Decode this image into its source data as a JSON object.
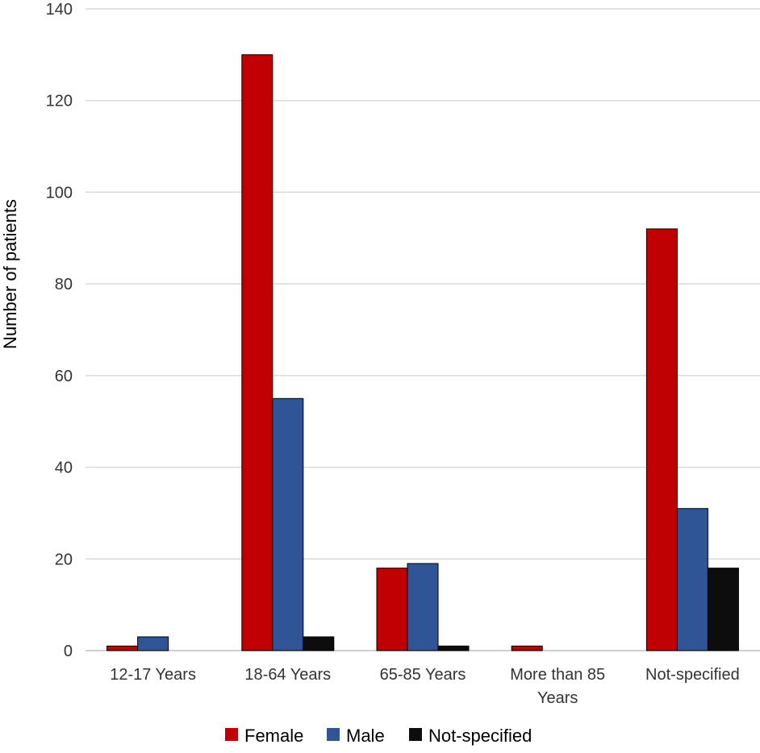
{
  "chart_data": {
    "type": "bar",
    "title": "",
    "xlabel": "",
    "ylabel": "Number of patients",
    "ylim": [
      0,
      140
    ],
    "yticks": [
      0,
      20,
      40,
      60,
      80,
      100,
      120,
      140
    ],
    "grid": true,
    "legend_position": "bottom",
    "categories": [
      [
        "12-17 Years"
      ],
      [
        "18-64 Years"
      ],
      [
        "65-85 Years"
      ],
      [
        "More than 85",
        "Years"
      ],
      [
        "Not-specified"
      ]
    ],
    "series": [
      {
        "name": "Female",
        "color": "#c00000",
        "values": [
          1,
          130,
          18,
          1,
          92
        ]
      },
      {
        "name": "Male",
        "color": "#2f5597",
        "values": [
          3,
          55,
          19,
          0,
          31
        ]
      },
      {
        "name": "Not-specified",
        "color": "#0d0d0d",
        "values": [
          0,
          3,
          1,
          0,
          18
        ]
      }
    ]
  }
}
